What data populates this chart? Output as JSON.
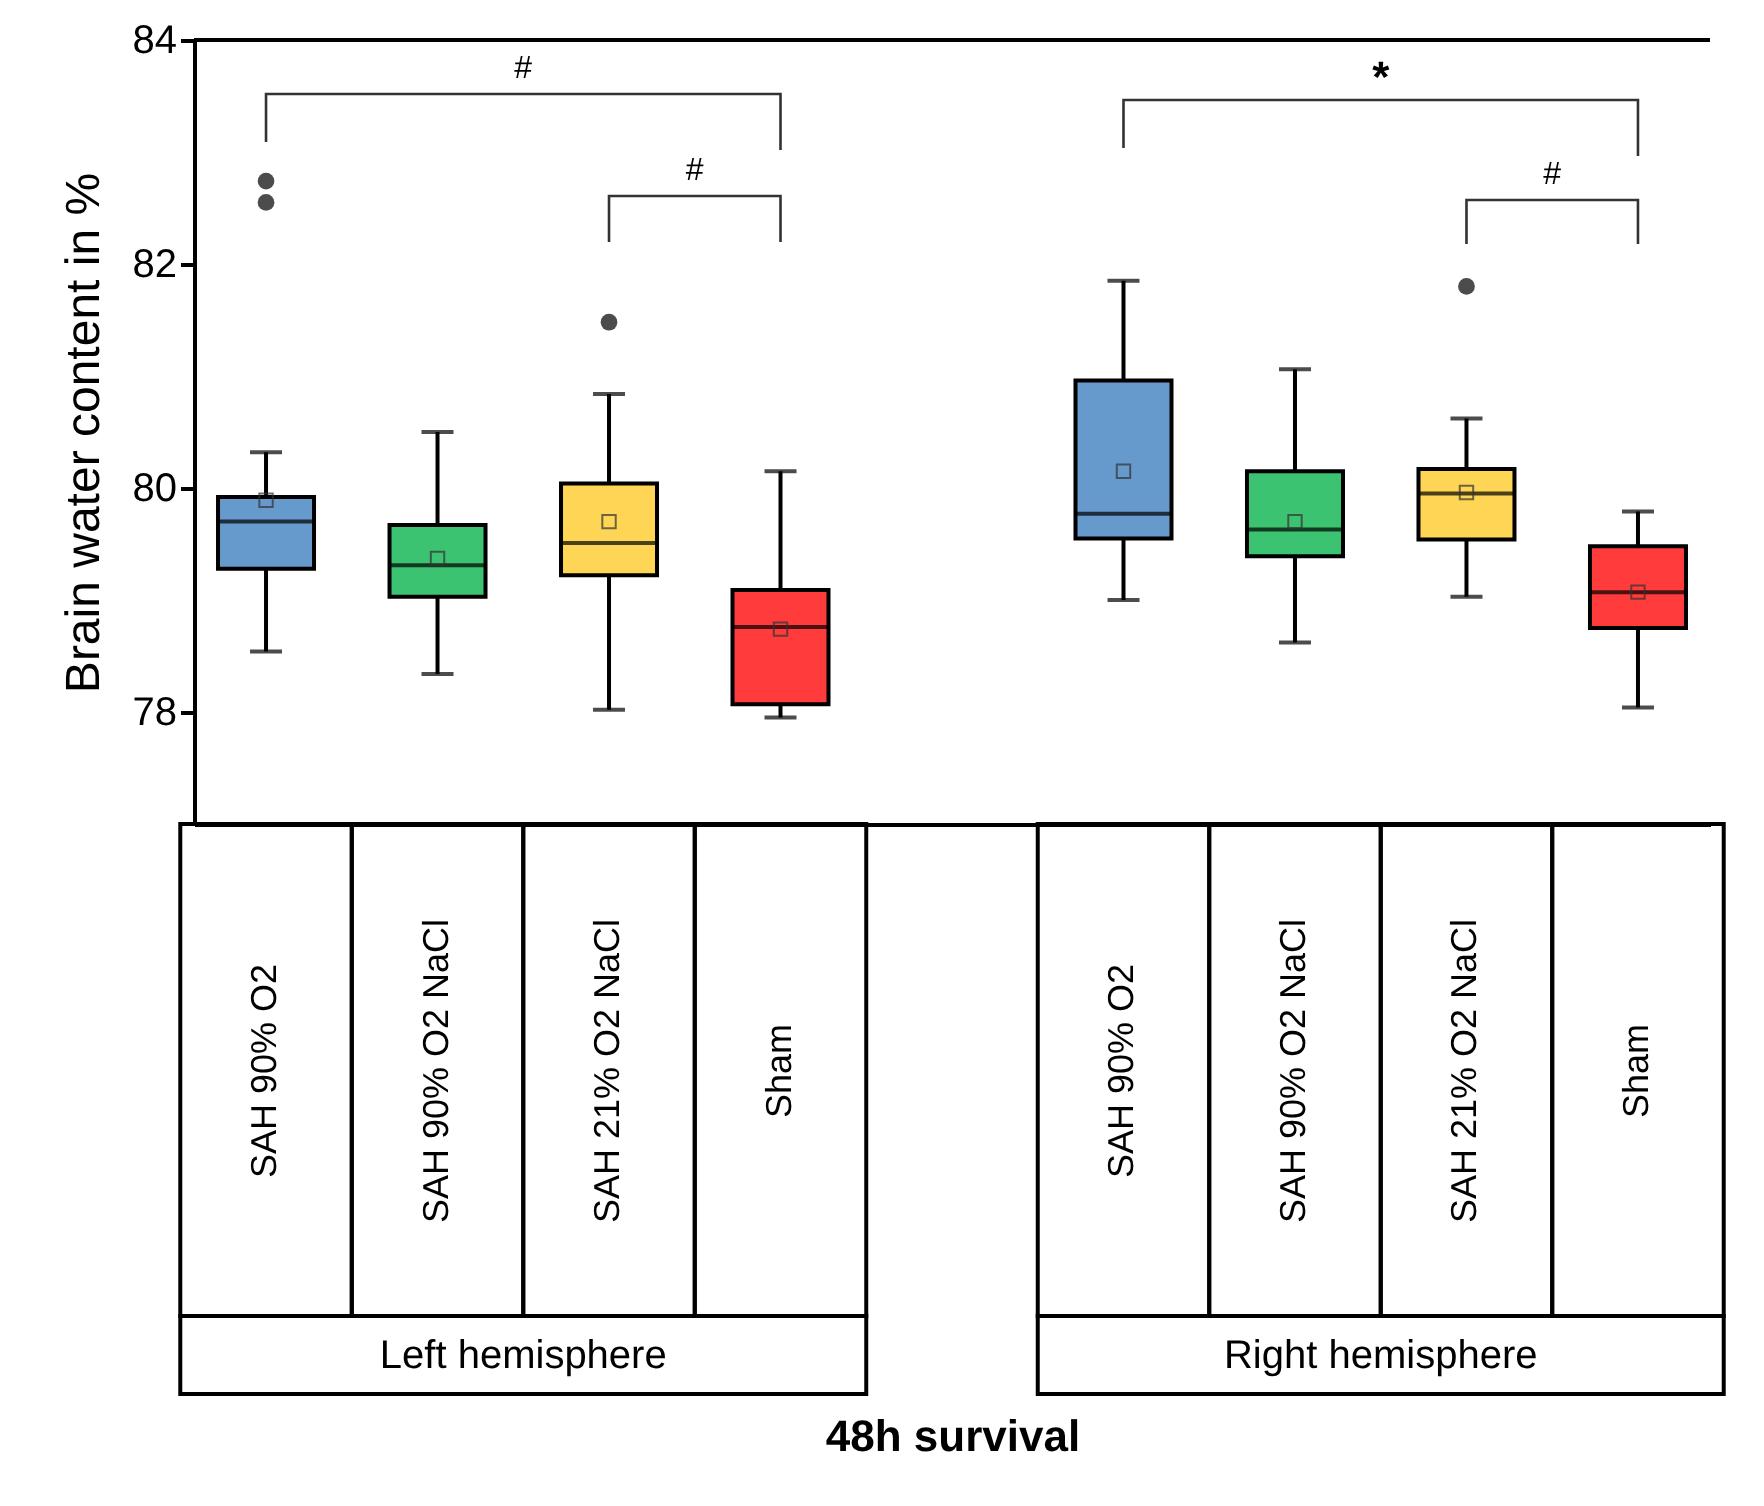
{
  "chart_data": {
    "type": "box",
    "xlabel": "48h survival",
    "ylabel": "Brain water content in %",
    "categories": [
      "SAH 90% O2",
      "SAH 90% O2 NaCl",
      "SAH 21% O2 NaCl",
      "Sham",
      "SAH 90% O2",
      "SAH 90% O2 NaCl",
      "SAH 21% O2 NaCl",
      "Sham"
    ],
    "colors": [
      "#6699cc",
      "#3cc372",
      "#ffd555",
      "#ff3b3b",
      "#6699cc",
      "#3cc372",
      "#ffd555",
      "#ff3b3b"
    ],
    "boxes": [
      {
        "low": 78.54,
        "q1": 79.28,
        "median": 79.7,
        "q3": 79.92,
        "high": 80.32,
        "mean": 79.89,
        "outliers": [
          82.74,
          82.55
        ]
      },
      {
        "low": 78.34,
        "q1": 79.03,
        "median": 79.31,
        "q3": 79.67,
        "high": 80.5,
        "mean": 79.37
      },
      {
        "low": 78.02,
        "q1": 79.22,
        "median": 79.51,
        "q3": 80.04,
        "high": 80.84,
        "mean": 79.7,
        "outliers": [
          81.48
        ]
      },
      {
        "low": 77.95,
        "q1": 78.07,
        "median": 78.76,
        "q3": 79.09,
        "high": 80.15,
        "mean": 78.74
      },
      {
        "low": 79.0,
        "q1": 79.55,
        "median": 79.77,
        "q3": 80.96,
        "high": 81.85,
        "mean": 80.15
      },
      {
        "low": 78.62,
        "q1": 79.39,
        "median": 79.63,
        "q3": 80.15,
        "high": 81.06,
        "mean": 79.7
      },
      {
        "low": 79.03,
        "q1": 79.54,
        "median": 79.95,
        "q3": 80.17,
        "high": 80.62,
        "mean": 79.96,
        "outliers": [
          81.8
        ]
      },
      {
        "low": 78.04,
        "q1": 78.75,
        "median": 79.07,
        "q3": 79.48,
        "high": 79.79,
        "mean": 79.07
      }
    ],
    "ylim": [
      77,
      84
    ],
    "yticks": [
      78,
      80,
      82,
      84
    ],
    "grid": false,
    "marker": "square",
    "annotations": [
      "#",
      "#",
      "*",
      "#",
      "Left hemisphere",
      "Right hemisphere"
    ]
  }
}
